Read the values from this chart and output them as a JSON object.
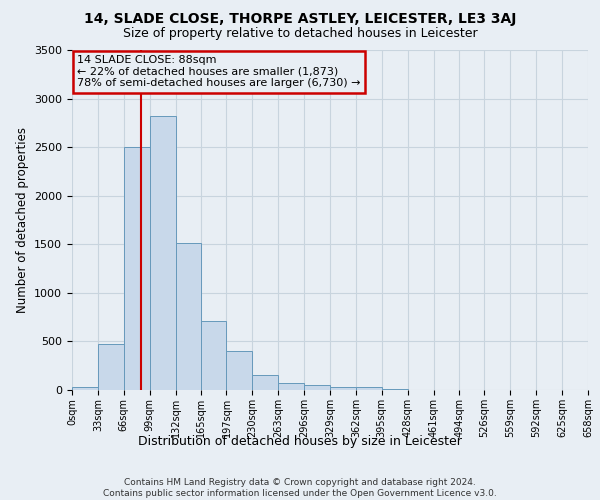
{
  "title": "14, SLADE CLOSE, THORPE ASTLEY, LEICESTER, LE3 3AJ",
  "subtitle": "Size of property relative to detached houses in Leicester",
  "xlabel": "Distribution of detached houses by size in Leicester",
  "ylabel": "Number of detached properties",
  "bin_edges": [
    0,
    33,
    66,
    99,
    132,
    165,
    197,
    230,
    263,
    296,
    329,
    362,
    395,
    428,
    461,
    494,
    526,
    559,
    592,
    625,
    658
  ],
  "bin_labels": [
    "0sqm",
    "33sqm",
    "66sqm",
    "99sqm",
    "132sqm",
    "165sqm",
    "197sqm",
    "230sqm",
    "263sqm",
    "296sqm",
    "329sqm",
    "362sqm",
    "395sqm",
    "428sqm",
    "461sqm",
    "494sqm",
    "526sqm",
    "559sqm",
    "592sqm",
    "625sqm",
    "658sqm"
  ],
  "counts": [
    30,
    470,
    2500,
    2820,
    1510,
    710,
    400,
    155,
    75,
    50,
    35,
    30,
    10,
    0,
    0,
    0,
    0,
    0,
    0,
    0
  ],
  "bar_color": "#c8d8ea",
  "bar_edge_color": "#6699bb",
  "vline_x": 88,
  "vline_color": "#cc0000",
  "ylim": [
    0,
    3500
  ],
  "yticks": [
    0,
    500,
    1000,
    1500,
    2000,
    2500,
    3000,
    3500
  ],
  "annotation_title": "14 SLADE CLOSE: 88sqm",
  "annotation_line1": "← 22% of detached houses are smaller (1,873)",
  "annotation_line2": "78% of semi-detached houses are larger (6,730) →",
  "annotation_box_edgecolor": "#cc0000",
  "grid_color": "#c8d4de",
  "background_color": "#e8eef4",
  "title_fontsize": 10,
  "subtitle_fontsize": 9,
  "footer_line1": "Contains HM Land Registry data © Crown copyright and database right 2024.",
  "footer_line2": "Contains public sector information licensed under the Open Government Licence v3.0."
}
